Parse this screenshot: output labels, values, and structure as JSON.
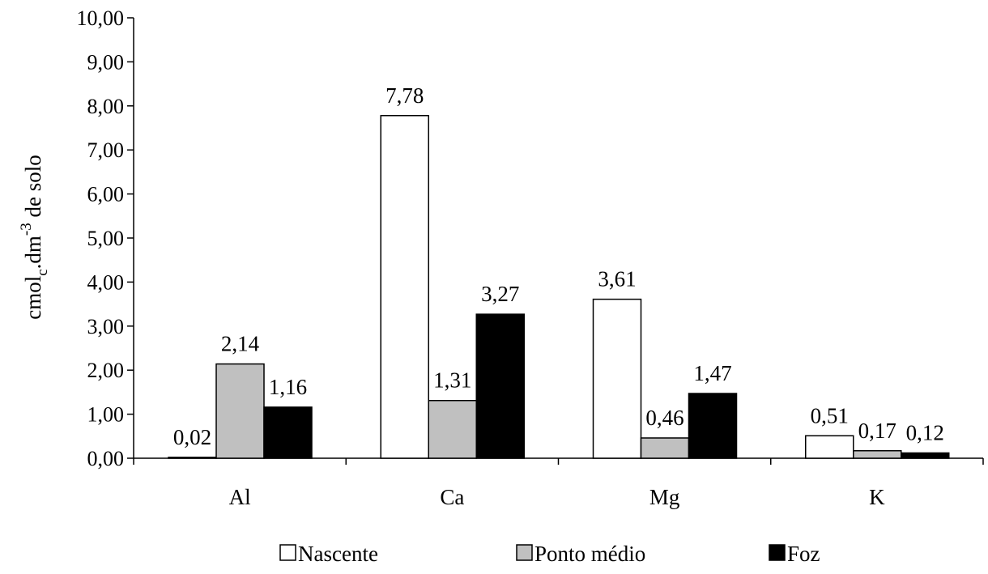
{
  "chart_data": {
    "type": "bar",
    "categories": [
      "Al",
      "Ca",
      "Mg",
      "K"
    ],
    "series": [
      {
        "name": "Nascente",
        "values": [
          0.02,
          7.78,
          3.61,
          0.51
        ],
        "labels": [
          "0,02",
          "7,78",
          "3,61",
          "0,51"
        ],
        "color": "#ffffff"
      },
      {
        "name": "Ponto médio",
        "values": [
          2.14,
          1.31,
          0.46,
          0.17
        ],
        "labels": [
          "2,14",
          "1,31",
          "0,46",
          "0,17"
        ],
        "color": "#c0c0c0"
      },
      {
        "name": "Foz",
        "values": [
          1.16,
          3.27,
          1.47,
          0.12
        ],
        "labels": [
          "1,16",
          "3,27",
          "1,47",
          "0,12"
        ],
        "color": "#000000"
      }
    ],
    "ylabel": {
      "main": "cmol",
      "sub": "c",
      "mid": ".dm",
      "sup": "-3",
      "tail": " de solo"
    },
    "ylim": [
      0,
      10
    ],
    "yticks": [
      "0,00",
      "1,00",
      "2,00",
      "3,00",
      "4,00",
      "5,00",
      "6,00",
      "7,00",
      "8,00",
      "9,00",
      "10,00"
    ],
    "grid": false,
    "legend_position": "bottom"
  }
}
